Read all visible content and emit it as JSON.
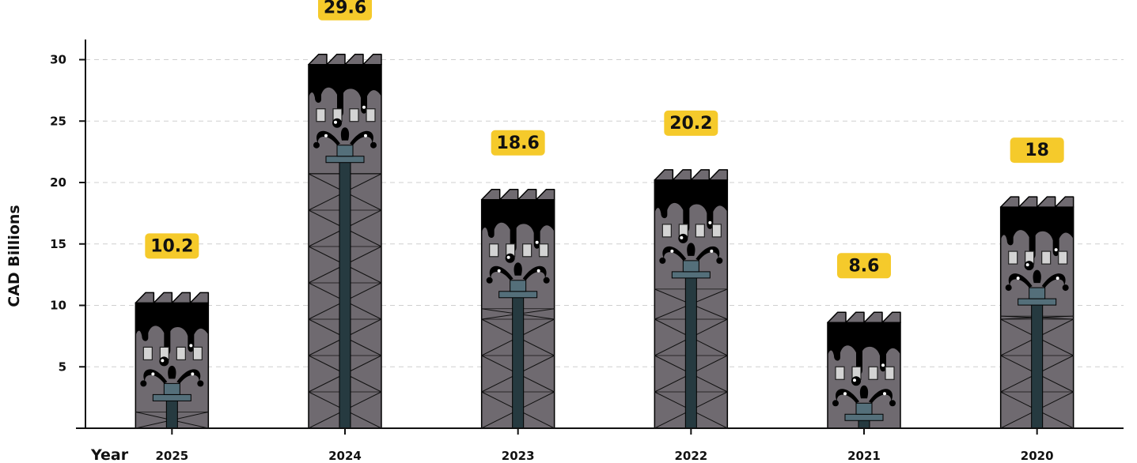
{
  "chart_data": {
    "type": "bar",
    "categories": [
      "2025",
      "2024",
      "2023",
      "2022",
      "2021",
      "2020"
    ],
    "values": [
      10.2,
      29.6,
      18.6,
      20.2,
      8.6,
      18
    ],
    "xlabel": "Year",
    "ylabel": "CAD Billions",
    "ylim": [
      0,
      31.5
    ],
    "yticks": [
      5,
      10,
      15,
      20,
      25,
      30
    ],
    "grid": true,
    "value_labels": true,
    "colors": {
      "bar": "#6f6a70",
      "oil": "#000000",
      "label_bg": "#f5ca2b",
      "derrick": "#263a40",
      "window": "#d3d3d3"
    }
  }
}
